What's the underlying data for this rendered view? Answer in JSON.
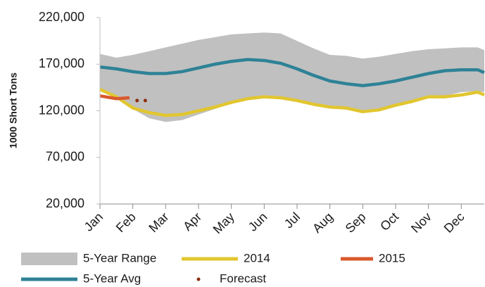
{
  "chart_data": {
    "type": "line",
    "y_axis_label": "1000 Short Tons",
    "xlim": [
      0,
      11.7
    ],
    "xticks": [
      {
        "value": 0,
        "label": "Jan"
      },
      {
        "value": 1,
        "label": "Feb"
      },
      {
        "value": 2,
        "label": "Mar"
      },
      {
        "value": 3,
        "label": "Apr"
      },
      {
        "value": 4,
        "label": "May"
      },
      {
        "value": 5,
        "label": "Jun"
      },
      {
        "value": 6,
        "label": "Jul"
      },
      {
        "value": 7,
        "label": "Aug"
      },
      {
        "value": 8,
        "label": "Sep"
      },
      {
        "value": 9,
        "label": "Oct"
      },
      {
        "value": 10,
        "label": "Nov"
      },
      {
        "value": 11,
        "label": "Dec"
      }
    ],
    "ylim": [
      20000,
      220000
    ],
    "yticks": [
      {
        "value": 20000,
        "label": "20,000"
      },
      {
        "value": 70000,
        "label": "70,000"
      },
      {
        "value": 120000,
        "label": "120,000"
      },
      {
        "value": 170000,
        "label": "170,000"
      },
      {
        "value": 220000,
        "label": "220,000"
      }
    ],
    "series": [
      {
        "name": "5-Year Range",
        "color": "#c0c0c0",
        "kind": "range",
        "x": [
          0,
          0.5,
          1,
          1.5,
          2,
          2.5,
          3,
          3.5,
          4,
          4.5,
          5,
          5.5,
          6,
          6.5,
          7,
          7.5,
          8,
          8.5,
          9,
          9.5,
          10,
          10.5,
          11,
          11.5,
          11.7
        ],
        "low": [
          143000,
          133000,
          122000,
          112000,
          108000,
          110000,
          116000,
          122000,
          128000,
          133000,
          136000,
          134000,
          130000,
          126000,
          123000,
          121000,
          118000,
          121000,
          125000,
          130000,
          135000,
          136000,
          140000,
          141000,
          140000
        ],
        "high": [
          181000,
          177000,
          180000,
          184000,
          188000,
          192000,
          196000,
          199000,
          202000,
          203000,
          204000,
          203000,
          195000,
          187000,
          180000,
          179000,
          176000,
          178000,
          181000,
          184000,
          186000,
          187000,
          188000,
          188000,
          185000
        ]
      },
      {
        "name": "2014",
        "color": "#e1c62f",
        "kind": "line",
        "x": [
          0,
          0.5,
          1,
          1.5,
          2,
          2.5,
          3,
          3.5,
          4,
          4.5,
          5,
          5.5,
          6,
          6.5,
          7,
          7.5,
          8,
          8.5,
          9,
          9.5,
          10,
          10.5,
          11,
          11.5,
          11.7
        ],
        "values": [
          143000,
          135000,
          123000,
          118000,
          115000,
          116000,
          120000,
          124000,
          129000,
          133000,
          135000,
          134000,
          131000,
          127000,
          124000,
          123000,
          119000,
          121000,
          126000,
          130000,
          135000,
          135000,
          137000,
          140000,
          137000
        ]
      },
      {
        "name": "2015",
        "color": "#d9582b",
        "kind": "line",
        "x": [
          0,
          0.5,
          0.9
        ],
        "values": [
          136000,
          133000,
          134000
        ]
      },
      {
        "name": "5-Year Avg",
        "color": "#2e8296",
        "kind": "line",
        "x": [
          0,
          0.5,
          1,
          1.5,
          2,
          2.5,
          3,
          3.5,
          4,
          4.5,
          5,
          5.5,
          6,
          6.5,
          7,
          7.5,
          8,
          8.5,
          9,
          9.5,
          10,
          10.5,
          11,
          11.5,
          11.7
        ],
        "values": [
          167000,
          165000,
          162000,
          160000,
          160000,
          162000,
          166000,
          170000,
          173000,
          175000,
          174000,
          171000,
          165000,
          158000,
          152000,
          149000,
          147000,
          149000,
          152000,
          156000,
          160000,
          163000,
          164000,
          164000,
          161000
        ]
      },
      {
        "name": "Forecast",
        "color": "#8b2f10",
        "kind": "dots",
        "x": [
          1.13,
          1.38
        ],
        "values": [
          131000,
          131000
        ]
      }
    ]
  }
}
